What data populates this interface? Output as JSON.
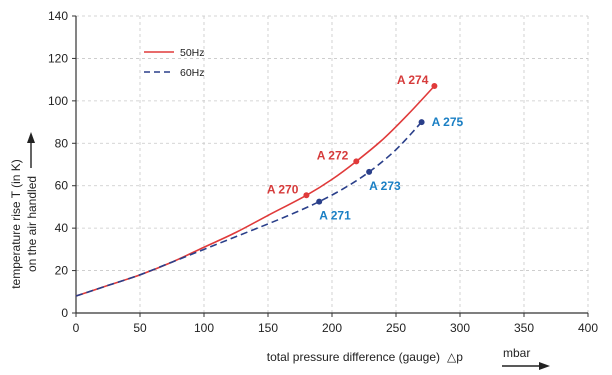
{
  "chart_data": {
    "type": "line",
    "xlabel": "total pressure difference (gauge)",
    "xsymbol": "△p",
    "xunit": "mbar",
    "ylabel_line1": "temperature rise T (in K)",
    "ylabel_line2": "on the air handled",
    "xlim": [
      0,
      400
    ],
    "ylim": [
      0,
      140
    ],
    "xticks": [
      "0",
      "50",
      "100",
      "150",
      "200",
      "250",
      "300",
      "350",
      "400"
    ],
    "yticks": [
      "0",
      "20",
      "40",
      "60",
      "80",
      "100",
      "120",
      "140"
    ],
    "grid": "dashed",
    "legend": "top-left",
    "series": [
      {
        "name": "50Hz",
        "color": "#e03a3a",
        "style": "solid",
        "x": [
          0,
          25,
          50,
          75,
          100,
          125,
          150,
          180,
          200,
          219,
          240,
          260,
          280
        ],
        "y": [
          8,
          13,
          18,
          24,
          31,
          38,
          46,
          55.5,
          63,
          71.5,
          82,
          94,
          107
        ]
      },
      {
        "name": "60Hz",
        "color": "#2a3f8a",
        "style": "dashed",
        "x": [
          0,
          25,
          50,
          75,
          100,
          125,
          150,
          170,
          190,
          210,
          229,
          250,
          270
        ],
        "y": [
          8,
          13,
          18,
          24,
          30,
          36,
          42,
          47,
          52.5,
          59,
          66.5,
          77,
          90
        ]
      }
    ],
    "points": [
      {
        "label": "A 270",
        "x": 180,
        "y": 55.5,
        "color": "#d63b3b",
        "series": "50Hz"
      },
      {
        "label": "A 272",
        "x": 219,
        "y": 71.5,
        "color": "#d63b3b",
        "series": "50Hz"
      },
      {
        "label": "A 274",
        "x": 280,
        "y": 107,
        "color": "#d63b3b",
        "series": "50Hz"
      },
      {
        "label": "A 271",
        "x": 190,
        "y": 52.5,
        "color": "#1a7fc4",
        "series": "60Hz"
      },
      {
        "label": "A 273",
        "x": 229,
        "y": 66.5,
        "color": "#1a7fc4",
        "series": "60Hz"
      },
      {
        "label": "A 275",
        "x": 270,
        "y": 90,
        "color": "#1a7fc4",
        "series": "60Hz"
      }
    ],
    "grid_color": "#c8c8c8",
    "axis_color": "#333333"
  }
}
